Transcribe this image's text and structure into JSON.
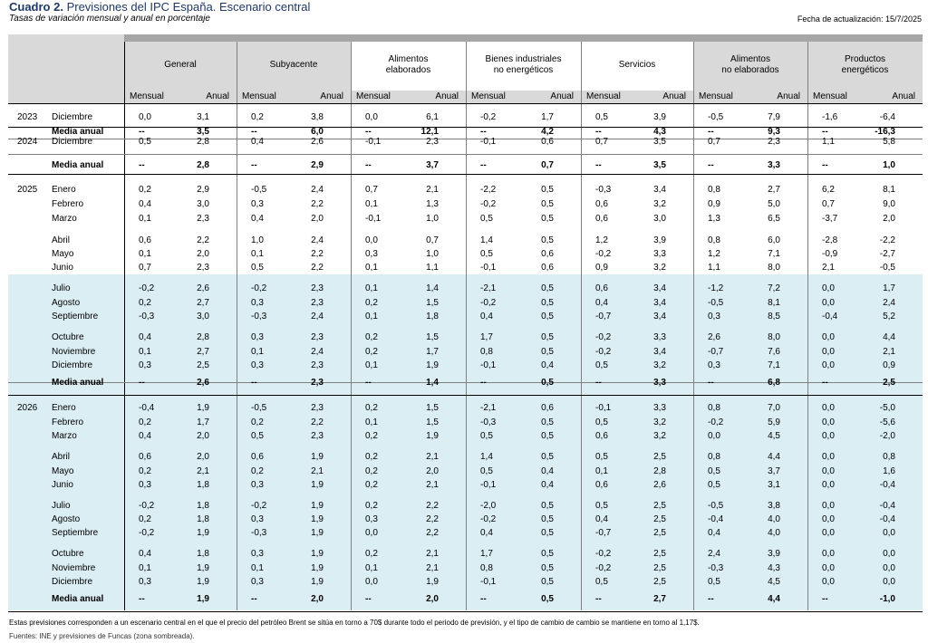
{
  "title": {
    "bold": "Cuadro 2.",
    "rest": " Previsiones del IPC España. Escenario central"
  },
  "subtitle": "Tasas de variación mensual y anual  en porcentaje",
  "update_date": "Fecha de actualización: 15/7/2025",
  "colors": {
    "header_bg": "#d9d9d9",
    "forecast_bg": "#dbeef3",
    "top_bar": "#a6a6a6",
    "title": "#1f3864",
    "divider": "#808080"
  },
  "groups": [
    {
      "label": [
        "General"
      ],
      "shade": true
    },
    {
      "label": [
        "Subyacente"
      ],
      "shade": true
    },
    {
      "label": [
        "Alimentos",
        "elaborados"
      ],
      "shade": false
    },
    {
      "label": [
        "Bienes industriales",
        "no energéticos"
      ],
      "shade": false
    },
    {
      "label": [
        "Servicios"
      ],
      "shade": false
    },
    {
      "label": [
        "Alimentos",
        "no elaborados"
      ],
      "shade": true
    },
    {
      "label": [
        "Productos",
        "energéticos"
      ],
      "shade": true
    }
  ],
  "subheaders": [
    "Mensual",
    "Anual"
  ],
  "rows": [
    {
      "year": "2023",
      "month": "Diciembre",
      "v": [
        "0,0",
        "3,1",
        "0,2",
        "3,8",
        "0,0",
        "6,1",
        "-0,2",
        "1,7",
        "0,5",
        "3,9",
        "-0,5",
        "7,9",
        "-1,6",
        "-6,4"
      ]
    },
    {
      "month": "Media anual",
      "bold": true,
      "v": [
        "--",
        "3,5",
        "--",
        "6,0",
        "--",
        "12,1",
        "--",
        "4,2",
        "--",
        "4,3",
        "--",
        "9,3",
        "--",
        "-16,3"
      ]
    },
    {
      "year": "2024",
      "month": "Diciembre",
      "v": [
        "0,5",
        "2,8",
        "0,4",
        "2,6",
        "-0,1",
        "2,3",
        "-0,1",
        "0,6",
        "0,7",
        "3,5",
        "0,7",
        "2,3",
        "1,1",
        "5,8"
      ]
    },
    {
      "month": "Media anual",
      "bold": true,
      "v": [
        "--",
        "2,8",
        "--",
        "2,9",
        "--",
        "3,7",
        "--",
        "0,7",
        "--",
        "3,5",
        "--",
        "3,3",
        "--",
        "1,0"
      ]
    },
    {
      "year": "2025",
      "month": "Enero",
      "v": [
        "0,2",
        "2,9",
        "-0,5",
        "2,4",
        "0,7",
        "2,1",
        "-2,2",
        "0,5",
        "-0,3",
        "3,4",
        "0,8",
        "2,7",
        "6,2",
        "8,1"
      ]
    },
    {
      "month": "Febrero",
      "v": [
        "0,4",
        "3,0",
        "0,3",
        "2,2",
        "0,1",
        "1,3",
        "-0,2",
        "0,5",
        "0,6",
        "3,2",
        "0,9",
        "5,0",
        "0,7",
        "9,0"
      ]
    },
    {
      "month": "Marzo",
      "v": [
        "0,1",
        "2,3",
        "0,4",
        "2,0",
        "-0,1",
        "1,0",
        "0,5",
        "0,5",
        "0,6",
        "3,0",
        "1,3",
        "6,5",
        "-3,7",
        "2,0"
      ]
    },
    {
      "month": "Abril",
      "v": [
        "0,6",
        "2,2",
        "1,0",
        "2,4",
        "0,0",
        "0,7",
        "1,4",
        "0,5",
        "1,2",
        "3,9",
        "0,8",
        "6,0",
        "-2,8",
        "-2,2"
      ]
    },
    {
      "month": "Mayo",
      "v": [
        "0,1",
        "2,0",
        "0,1",
        "2,2",
        "0,3",
        "1,0",
        "0,5",
        "0,6",
        "-0,2",
        "3,3",
        "1,2",
        "7,1",
        "-0,9",
        "-2,7"
      ]
    },
    {
      "month": "Junio",
      "v": [
        "0,7",
        "2,3",
        "0,5",
        "2,2",
        "0,1",
        "1,1",
        "-0,1",
        "0,6",
        "0,9",
        "3,2",
        "1,1",
        "8,0",
        "2,1",
        "-0,5"
      ]
    },
    {
      "month": "Julio",
      "v": [
        "-0,2",
        "2,6",
        "-0,2",
        "2,3",
        "0,1",
        "1,4",
        "-2,1",
        "0,5",
        "0,6",
        "3,4",
        "-1,2",
        "7,2",
        "0,0",
        "1,7"
      ]
    },
    {
      "month": "Agosto",
      "v": [
        "0,2",
        "2,7",
        "0,3",
        "2,3",
        "0,2",
        "1,5",
        "-0,2",
        "0,5",
        "0,4",
        "3,4",
        "-0,5",
        "8,1",
        "0,0",
        "2,4"
      ]
    },
    {
      "month": "Septiembre",
      "v": [
        "-0,3",
        "3,0",
        "-0,3",
        "2,4",
        "0,1",
        "1,8",
        "0,4",
        "0,5",
        "-0,7",
        "3,4",
        "0,3",
        "8,5",
        "-0,4",
        "5,2"
      ]
    },
    {
      "month": "Octubre",
      "v": [
        "0,4",
        "2,8",
        "0,3",
        "2,3",
        "0,2",
        "1,5",
        "1,7",
        "0,5",
        "-0,2",
        "3,3",
        "2,6",
        "8,0",
        "0,0",
        "4,4"
      ]
    },
    {
      "month": "Noviembre",
      "v": [
        "0,1",
        "2,7",
        "0,1",
        "2,4",
        "0,2",
        "1,7",
        "0,8",
        "0,5",
        "-0,2",
        "3,4",
        "-0,7",
        "7,6",
        "0,0",
        "2,1"
      ]
    },
    {
      "month": "Diciembre",
      "v": [
        "0,3",
        "2,5",
        "0,3",
        "2,3",
        "0,1",
        "1,9",
        "-0,1",
        "0,4",
        "0,5",
        "3,2",
        "0,3",
        "7,1",
        "0,0",
        "0,9"
      ]
    },
    {
      "month": "Media anual",
      "bold": true,
      "v": [
        "--",
        "2,6",
        "--",
        "2,3",
        "--",
        "1,4",
        "--",
        "0,5",
        "--",
        "3,3",
        "--",
        "6,8",
        "--",
        "2,5"
      ]
    },
    {
      "year": "2026",
      "month": "Enero",
      "v": [
        "-0,4",
        "1,9",
        "-0,5",
        "2,3",
        "0,2",
        "1,5",
        "-2,1",
        "0,6",
        "-0,1",
        "3,3",
        "0,8",
        "7,0",
        "0,0",
        "-5,0"
      ]
    },
    {
      "month": "Febrero",
      "v": [
        "0,2",
        "1,7",
        "0,2",
        "2,2",
        "0,1",
        "1,5",
        "-0,3",
        "0,5",
        "0,5",
        "3,2",
        "-0,2",
        "5,9",
        "0,0",
        "-5,6"
      ]
    },
    {
      "month": "Marzo",
      "v": [
        "0,4",
        "2,0",
        "0,5",
        "2,3",
        "0,2",
        "1,9",
        "0,5",
        "0,5",
        "0,6",
        "3,2",
        "0,0",
        "4,5",
        "0,0",
        "-2,0"
      ]
    },
    {
      "month": "Abril",
      "v": [
        "0,6",
        "2,0",
        "0,6",
        "1,9",
        "0,2",
        "2,1",
        "1,4",
        "0,5",
        "0,5",
        "2,5",
        "0,8",
        "4,4",
        "0,0",
        "0,8"
      ]
    },
    {
      "month": "Mayo",
      "v": [
        "0,2",
        "2,1",
        "0,2",
        "2,1",
        "0,2",
        "2,0",
        "0,5",
        "0,4",
        "0,1",
        "2,8",
        "0,5",
        "3,7",
        "0,0",
        "1,6"
      ]
    },
    {
      "month": "Junio",
      "v": [
        "0,3",
        "1,8",
        "0,3",
        "1,9",
        "0,2",
        "2,1",
        "-0,1",
        "0,4",
        "0,6",
        "2,6",
        "0,5",
        "3,1",
        "0,0",
        "-0,4"
      ]
    },
    {
      "month": "Julio",
      "v": [
        "-0,2",
        "1,8",
        "-0,2",
        "1,9",
        "0,2",
        "2,2",
        "-2,0",
        "0,5",
        "0,5",
        "2,5",
        "-0,5",
        "3,8",
        "0,0",
        "-0,4"
      ]
    },
    {
      "month": "Agosto",
      "v": [
        "0,2",
        "1,8",
        "0,3",
        "1,9",
        "0,3",
        "2,2",
        "-0,2",
        "0,5",
        "0,4",
        "2,5",
        "-0,4",
        "4,0",
        "0,0",
        "-0,4"
      ]
    },
    {
      "month": "Septiembre",
      "v": [
        "-0,2",
        "1,9",
        "-0,3",
        "1,9",
        "0,0",
        "2,2",
        "0,4",
        "0,5",
        "-0,7",
        "2,5",
        "0,4",
        "4,0",
        "0,0",
        "0,0"
      ]
    },
    {
      "month": "Octubre",
      "v": [
        "0,4",
        "1,8",
        "0,3",
        "1,9",
        "0,2",
        "2,1",
        "1,7",
        "0,5",
        "-0,2",
        "2,5",
        "2,4",
        "3,9",
        "0,0",
        "0,0"
      ]
    },
    {
      "month": "Noviembre",
      "v": [
        "0,1",
        "1,9",
        "0,1",
        "1,9",
        "0,1",
        "2,1",
        "0,8",
        "0,5",
        "-0,2",
        "2,5",
        "-0,3",
        "4,3",
        "0,0",
        "0,0"
      ]
    },
    {
      "month": "Diciembre",
      "v": [
        "0,3",
        "1,9",
        "0,3",
        "1,9",
        "0,0",
        "1,9",
        "-0,1",
        "0,5",
        "0,5",
        "2,5",
        "0,5",
        "4,5",
        "0,0",
        "0,0"
      ]
    },
    {
      "month": "Media anual",
      "bold": true,
      "v": [
        "--",
        "1,9",
        "--",
        "2,0",
        "--",
        "2,0",
        "--",
        "0,5",
        "--",
        "2,7",
        "--",
        "4,4",
        "--",
        "-1,0"
      ]
    }
  ],
  "footnote": "Estas previsiones corresponden a un escenario central en el que el precio del petróleo Brent se sitúa en torno a 70$ durante todo el periodo de previsión, y el tipo de cambio de cambio se mantiene en torno al 1,17$.",
  "sources": "Fuentes: INE y previsiones de Funcas (zona sombreada)."
}
